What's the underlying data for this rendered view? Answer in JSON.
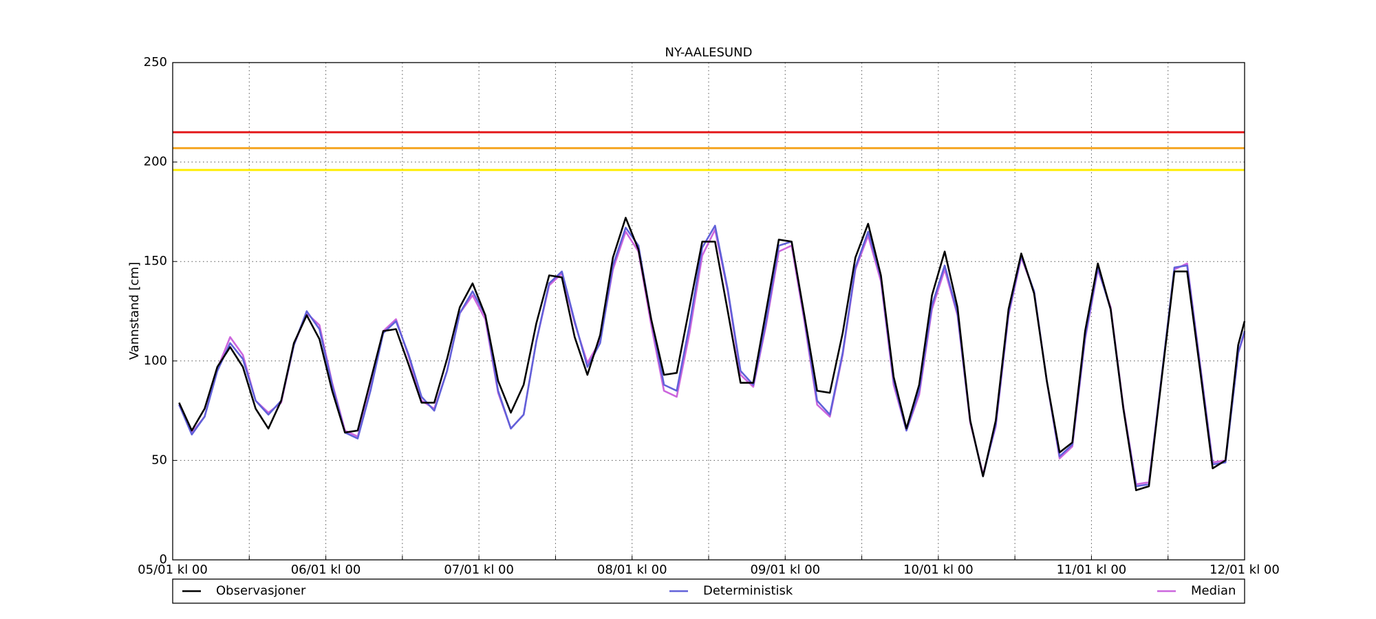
{
  "chart_data": {
    "type": "line",
    "title": "NY-AALESUND",
    "ylabel": "Vannstand [cm]",
    "x": [
      1,
      3,
      5,
      7,
      9,
      11,
      13,
      15,
      17,
      19,
      21,
      23,
      25,
      27,
      29,
      31,
      33,
      35,
      37,
      39,
      41,
      43,
      45,
      47,
      49,
      51,
      53,
      55,
      57,
      59,
      61,
      63,
      65,
      67,
      69,
      71,
      73,
      75,
      77,
      79,
      81,
      83,
      85,
      87,
      89,
      91,
      93,
      95,
      97,
      99,
      101,
      103,
      105,
      107,
      109,
      111,
      113,
      115,
      117,
      119,
      121,
      123,
      125,
      127,
      129,
      131,
      133,
      135,
      137,
      139,
      141,
      143,
      145,
      147,
      149,
      151,
      153,
      155,
      157,
      159,
      161,
      163,
      165,
      167,
      168
    ],
    "series": [
      {
        "name": "Median",
        "color": "#cc66dd",
        "values": [
          78,
          64,
          72,
          96,
          112,
          103,
          80,
          74,
          79,
          108,
          124,
          118,
          89,
          65,
          62,
          86,
          115,
          121,
          102,
          80,
          76,
          95,
          124,
          133,
          121,
          84,
          66,
          73,
          110,
          138,
          144,
          119,
          99,
          110,
          146,
          165,
          155,
          118,
          85,
          82,
          114,
          153,
          166,
          135,
          93,
          87,
          118,
          155,
          158,
          120,
          78,
          72,
          103,
          146,
          163,
          140,
          88,
          65,
          83,
          126,
          146,
          123,
          69,
          43,
          67,
          123,
          152,
          135,
          90,
          51,
          57,
          111,
          146,
          127,
          77,
          38,
          39,
          92,
          146,
          149,
          99,
          49,
          50,
          104,
          114
        ]
      },
      {
        "name": "Deterministisk",
        "color": "#6161d9",
        "values": [
          78,
          63,
          72,
          95,
          109,
          101,
          80,
          73,
          80,
          108,
          125,
          116,
          88,
          64,
          61,
          85,
          114,
          120,
          103,
          82,
          75,
          95,
          124,
          135,
          123,
          85,
          66,
          73,
          110,
          139,
          145,
          120,
          97,
          109,
          148,
          167,
          158,
          121,
          88,
          85,
          118,
          157,
          168,
          136,
          95,
          88,
          120,
          158,
          160,
          122,
          80,
          73,
          104,
          147,
          165,
          142,
          90,
          65,
          85,
          128,
          148,
          124,
          70,
          42,
          68,
          124,
          153,
          135,
          90,
          52,
          58,
          112,
          147,
          126,
          76,
          37,
          38,
          92,
          147,
          148,
          98,
          48,
          49,
          104,
          115
        ]
      },
      {
        "name": "Observasjoner",
        "color": "#000000",
        "values": [
          79,
          65,
          76,
          97,
          107,
          97,
          76,
          66,
          80,
          109,
          123,
          111,
          85,
          64,
          65,
          90,
          115,
          116,
          98,
          79,
          79,
          101,
          127,
          139,
          123,
          90,
          74,
          88,
          119,
          143,
          142,
          112,
          93,
          113,
          152,
          172,
          156,
          121,
          93,
          94,
          127,
          160,
          160,
          125,
          89,
          89,
          125,
          161,
          160,
          123,
          85,
          84,
          114,
          152,
          169,
          143,
          92,
          66,
          88,
          133,
          155,
          127,
          70,
          42,
          70,
          126,
          154,
          134,
          90,
          54,
          59,
          115,
          149,
          126,
          76,
          35,
          37,
          91,
          145,
          145,
          96,
          46,
          50,
          108,
          120
        ]
      }
    ],
    "reference_lines": [
      {
        "value": 215,
        "color": "#e41a1c"
      },
      {
        "value": 207,
        "color": "#f5a623"
      },
      {
        "value": 196,
        "color": "#ffee00"
      }
    ],
    "xlim": [
      0,
      168
    ],
    "xticks": [
      {
        "value": 0,
        "label": "05/01 kl 00"
      },
      {
        "value": 24,
        "label": "06/01 kl 00"
      },
      {
        "value": 48,
        "label": "07/01 kl 00"
      },
      {
        "value": 72,
        "label": "08/01 kl 00"
      },
      {
        "value": 96,
        "label": "09/01 kl 00"
      },
      {
        "value": 120,
        "label": "10/01 kl 00"
      },
      {
        "value": 144,
        "label": "11/01 kl 00"
      },
      {
        "value": 168,
        "label": "12/01 kl 00"
      }
    ],
    "xminorticks": [
      12,
      36,
      60,
      84,
      108,
      132,
      156
    ],
    "ylim": [
      0,
      250
    ],
    "yticks": [
      0,
      50,
      100,
      150,
      200,
      250
    ],
    "grid": true,
    "legend": "bottom"
  }
}
